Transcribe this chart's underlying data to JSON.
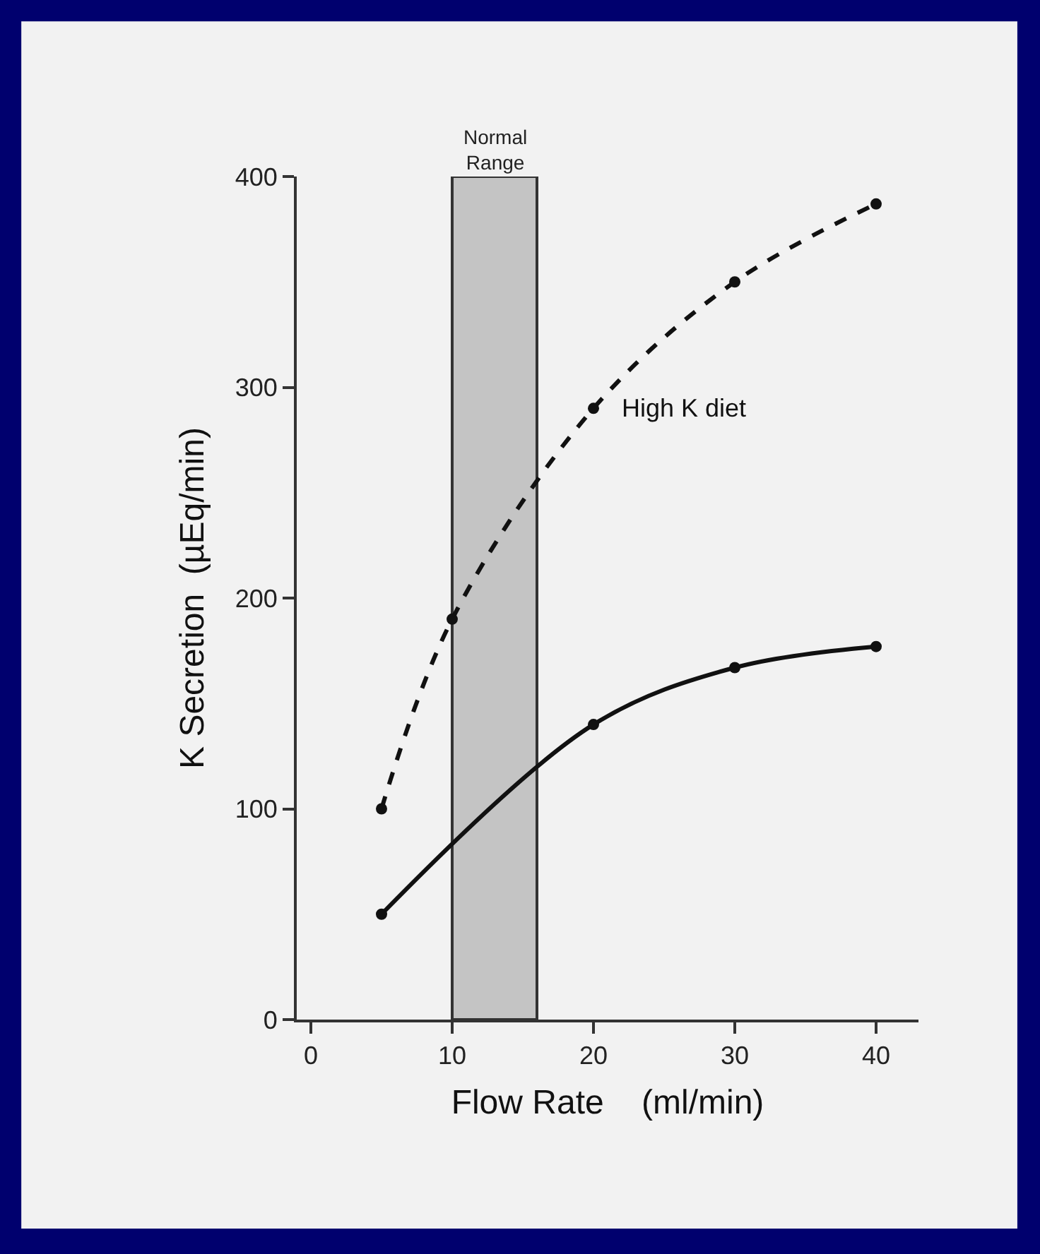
{
  "chart_data": {
    "type": "line",
    "xlabel": "Flow Rate    (ml/min)",
    "ylabel": "K Secretion  (µEq/min)",
    "xlim": [
      -1,
      43
    ],
    "ylim": [
      0,
      400
    ],
    "xticks": [
      0,
      10,
      20,
      30,
      40
    ],
    "yticks": [
      0,
      100,
      200,
      300,
      400
    ],
    "series": [
      {
        "name": "High K diet",
        "color": "#111111",
        "line_style": "dashed",
        "x": [
          5,
          10,
          20,
          30,
          40
        ],
        "values": [
          100,
          190,
          290,
          350,
          387
        ]
      },
      {
        "color": "#111111",
        "line_style": "solid",
        "x": [
          5,
          20,
          30,
          40
        ],
        "values": [
          50,
          140,
          167,
          177
        ]
      }
    ],
    "bands": [
      {
        "axis": "x",
        "from": 10,
        "to": 16,
        "label": "Normal Range",
        "color": "#c4c4c4"
      }
    ],
    "marker": "circle",
    "grid": false,
    "legend": false
  }
}
